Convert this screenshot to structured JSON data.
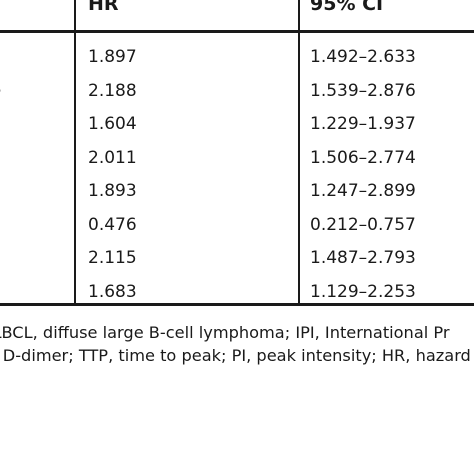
{
  "table": {
    "headers": {
      "hr": "HR",
      "ci": "95% CI"
    },
    "rows": [
      {
        "label": "",
        "hr": "1.897",
        "ci": "1.492–2.633"
      },
      {
        "label": "ge",
        "hr": "2.188",
        "ci": "1.539–2.876"
      },
      {
        "label": "",
        "hr": "1.604",
        "ci": "1.229–1.937"
      },
      {
        "label": "",
        "hr": "2.011",
        "ci": "1.506–2.774"
      },
      {
        "label": "",
        "hr": "1.893",
        "ci": "1.247–2.899"
      },
      {
        "label": "",
        "hr": "0.476",
        "ci": "0.212–0.757"
      },
      {
        "label": "",
        "hr": "2.115",
        "ci": "1.487–2.793"
      },
      {
        "label": "",
        "hr": "1.683",
        "ci": "1.129–2.253"
      }
    ]
  },
  "footnote": {
    "line1": "DLBCL, diffuse large B-cell lymphoma; IPI, International Pr",
    "line2": "D, D-dimer; TTP, time to peak; PI, peak intensity; HR, hazard"
  }
}
